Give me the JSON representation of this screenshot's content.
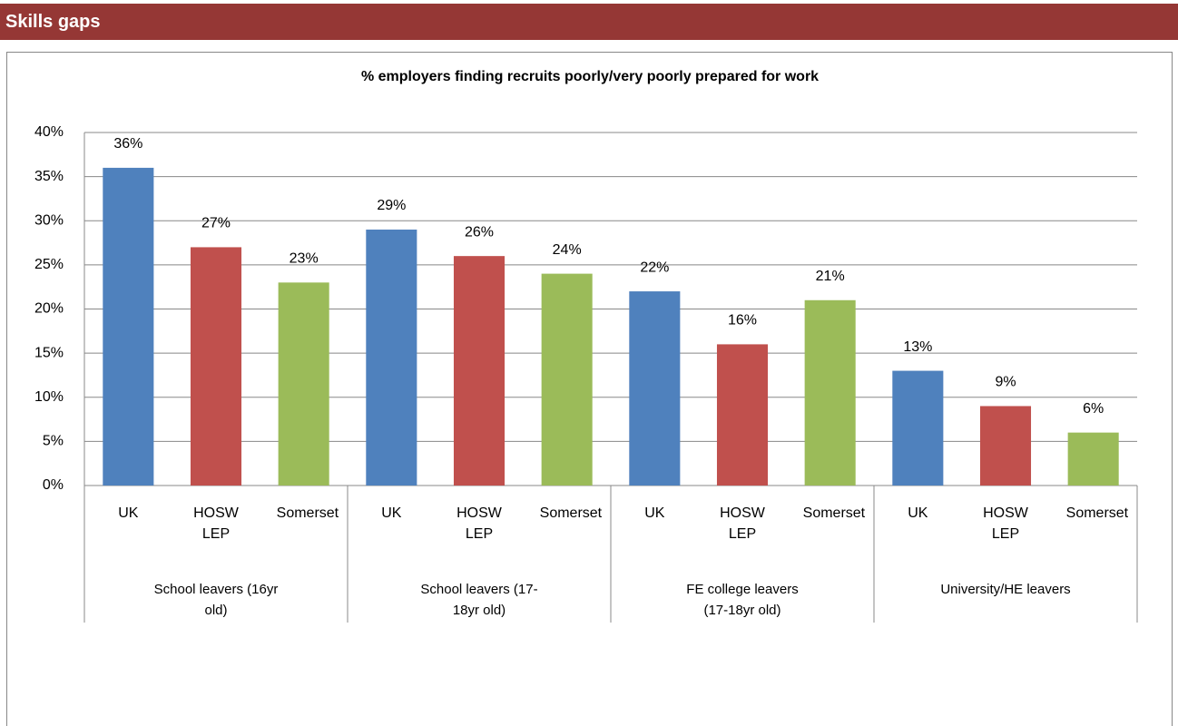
{
  "header": {
    "title": "Skills gaps"
  },
  "chart_data": {
    "type": "bar",
    "title": "% employers finding recruits poorly/very poorly prepared for work",
    "colors": [
      "#4f81bd",
      "#c0504d",
      "#9bbb59"
    ],
    "groups": [
      {
        "name": "School leavers (16yr old)",
        "categories": [
          "UK",
          "HOSW LEP",
          "Somerset"
        ],
        "values": [
          36,
          27,
          23
        ],
        "value_labels": [
          "36%",
          "27%",
          "23%"
        ]
      },
      {
        "name": "School leavers (17-18yr old)",
        "categories": [
          "UK",
          "HOSW LEP",
          "Somerset"
        ],
        "values": [
          29,
          26,
          24
        ],
        "value_labels": [
          "29%",
          "26%",
          "24%"
        ]
      },
      {
        "name": "FE college leavers (17-18yr old)",
        "categories": [
          "UK",
          "HOSW LEP",
          "Somerset"
        ],
        "values": [
          22,
          16,
          21
        ],
        "value_labels": [
          "22%",
          "16%",
          "21%"
        ]
      },
      {
        "name": "University/HE leavers",
        "categories": [
          "UK",
          "HOSW LEP",
          "Somerset"
        ],
        "values": [
          13,
          9,
          6
        ],
        "value_labels": [
          "13%",
          "9%",
          "6%"
        ]
      }
    ],
    "ylim": [
      0,
      40
    ],
    "yticks": [
      {
        "value": 0,
        "label": "0%"
      },
      {
        "value": 5,
        "label": "5%"
      },
      {
        "value": 10,
        "label": "10%"
      },
      {
        "value": 15,
        "label": "15%"
      },
      {
        "value": 20,
        "label": "20%"
      },
      {
        "value": 25,
        "label": "25%"
      },
      {
        "value": 30,
        "label": "30%"
      },
      {
        "value": 35,
        "label": "35%"
      },
      {
        "value": 40,
        "label": "40%"
      }
    ],
    "grid": true
  }
}
